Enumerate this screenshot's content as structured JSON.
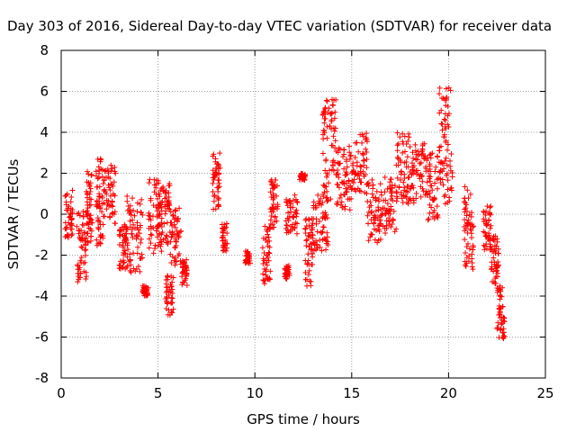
{
  "chart_data": {
    "type": "scatter",
    "title": "Day 303 of 2016, Sidereal Day-to-day VTEC variation (SDTVAR) for receiver data",
    "xlabel": "GPS time / hours",
    "ylabel": "SDTVAR / TECUs",
    "xlim": [
      0,
      25
    ],
    "ylim": [
      -8,
      8
    ],
    "xticks": [
      "0",
      "5",
      "10",
      "15",
      "20",
      "25"
    ],
    "yticks": [
      "-8",
      "-6",
      "-4",
      "-2",
      "0",
      "2",
      "4",
      "6",
      "8"
    ],
    "grid": true,
    "marker": "plus",
    "color": "#ff0000",
    "series": [
      {
        "name": "SDTVAR",
        "clusters": [
          {
            "x": [
              0.2,
              0.6
            ],
            "y": [
              -1.2,
              1.2
            ]
          },
          {
            "x": [
              0.8,
              1.3
            ],
            "y": [
              -3.3,
              0.2
            ]
          },
          {
            "x": [
              1.3,
              1.6
            ],
            "y": [
              -1.5,
              2.2
            ]
          },
          {
            "x": [
              1.8,
              2.2
            ],
            "y": [
              -1.8,
              2.8
            ]
          },
          {
            "x": [
              2.2,
              2.8
            ],
            "y": [
              -0.5,
              2.4
            ]
          },
          {
            "x": [
              3.0,
              3.4
            ],
            "y": [
              -2.8,
              -0.5
            ]
          },
          {
            "x": [
              3.4,
              4.2
            ],
            "y": [
              -3.0,
              1.0
            ]
          },
          {
            "x": [
              4.2,
              4.5
            ],
            "y": [
              -4.0,
              -3.5
            ]
          },
          {
            "x": [
              4.5,
              5.2
            ],
            "y": [
              -2.0,
              1.8
            ]
          },
          {
            "x": [
              5.0,
              5.6
            ],
            "y": [
              -1.5,
              1.5
            ]
          },
          {
            "x": [
              5.4,
              5.8
            ],
            "y": [
              -5.0,
              -3.0
            ]
          },
          {
            "x": [
              5.6,
              6.2
            ],
            "y": [
              -2.5,
              0.3
            ]
          },
          {
            "x": [
              6.2,
              6.5
            ],
            "y": [
              -3.5,
              -2.2
            ]
          },
          {
            "x": [
              7.8,
              8.2
            ],
            "y": [
              0.2,
              3.0
            ]
          },
          {
            "x": [
              8.3,
              8.6
            ],
            "y": [
              -1.8,
              -0.4
            ]
          },
          {
            "x": [
              9.5,
              9.8
            ],
            "y": [
              -2.4,
              -1.8
            ]
          },
          {
            "x": [
              10.4,
              10.8
            ],
            "y": [
              -3.4,
              -0.5
            ]
          },
          {
            "x": [
              10.8,
              11.2
            ],
            "y": [
              -0.7,
              1.8
            ]
          },
          {
            "x": [
              11.5,
              11.8
            ],
            "y": [
              -3.2,
              -2.5
            ]
          },
          {
            "x": [
              11.6,
              12.2
            ],
            "y": [
              -1.0,
              1.0
            ]
          },
          {
            "x": [
              12.3,
              12.6
            ],
            "y": [
              1.6,
              2.0
            ]
          },
          {
            "x": [
              12.6,
              13.0
            ],
            "y": [
              -3.6,
              -0.2
            ]
          },
          {
            "x": [
              13.0,
              13.8
            ],
            "y": [
              -1.8,
              1.0
            ]
          },
          {
            "x": [
              13.5,
              14.2
            ],
            "y": [
              0.5,
              5.7
            ]
          },
          {
            "x": [
              14.2,
              15.0
            ],
            "y": [
              0.2,
              3.5
            ]
          },
          {
            "x": [
              15.0,
              15.8
            ],
            "y": [
              1.0,
              4.0
            ]
          },
          {
            "x": [
              15.8,
              16.6
            ],
            "y": [
              -1.5,
              2.0
            ]
          },
          {
            "x": [
              16.6,
              17.3
            ],
            "y": [
              -1.0,
              1.8
            ]
          },
          {
            "x": [
              17.3,
              18.0
            ],
            "y": [
              0.5,
              4.0
            ]
          },
          {
            "x": [
              18.0,
              18.8
            ],
            "y": [
              0.5,
              3.5
            ]
          },
          {
            "x": [
              18.8,
              19.5
            ],
            "y": [
              -0.3,
              3.0
            ]
          },
          {
            "x": [
              19.5,
              20.2
            ],
            "y": [
              0.5,
              6.3
            ]
          },
          {
            "x": [
              20.8,
              21.3
            ],
            "y": [
              -2.7,
              1.5
            ]
          },
          {
            "x": [
              21.8,
              22.2
            ],
            "y": [
              -1.8,
              0.4
            ]
          },
          {
            "x": [
              22.2,
              22.6
            ],
            "y": [
              -3.5,
              -1.0
            ]
          },
          {
            "x": [
              22.5,
              22.9
            ],
            "y": [
              -6.1,
              -3.5
            ]
          }
        ]
      }
    ]
  }
}
